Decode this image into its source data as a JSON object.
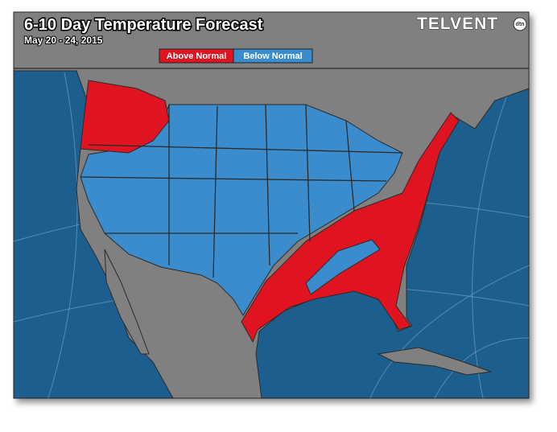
{
  "header": {
    "title": "6-10 Day Temperature Forecast",
    "subtitle": "May 20 - 24, 2015",
    "logo": "TELVENT",
    "logo_badge": "dtn"
  },
  "legend": [
    {
      "label": "Above Normal",
      "color": "#e01420"
    },
    {
      "label": "Below Normal",
      "color": "#3a8ccc"
    }
  ]
}
